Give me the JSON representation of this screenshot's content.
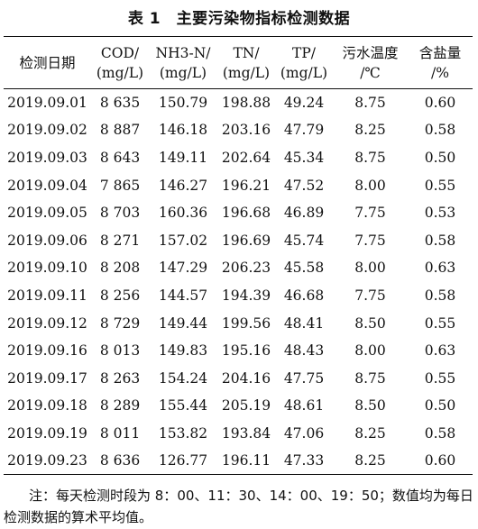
{
  "caption": "表 1　主要污染物指标检测数据",
  "columns": [
    {
      "line1": "检测日期",
      "line2": ""
    },
    {
      "line1": "COD/",
      "line2": "(mg/L)"
    },
    {
      "line1": "NH3-N/",
      "line2": "(mg/L)"
    },
    {
      "line1": "TN/",
      "line2": "(mg/L)"
    },
    {
      "line1": "TP/",
      "line2": "(mg/L)"
    },
    {
      "line1": "污水温度",
      "line2": "/℃"
    },
    {
      "line1": "含盐量",
      "line2": "/%"
    }
  ],
  "rows": [
    [
      "2019.09.01",
      "8 635",
      "150.79",
      "198.88",
      "49.24",
      "8.75",
      "0.60"
    ],
    [
      "2019.09.02",
      "8 887",
      "146.18",
      "203.16",
      "47.79",
      "8.25",
      "0.58"
    ],
    [
      "2019.09.03",
      "8 643",
      "149.11",
      "202.64",
      "45.34",
      "8.75",
      "0.50"
    ],
    [
      "2019.09.04",
      "7 865",
      "146.27",
      "196.21",
      "47.52",
      "8.00",
      "0.55"
    ],
    [
      "2019.09.05",
      "8 703",
      "160.36",
      "196.68",
      "46.89",
      "7.75",
      "0.53"
    ],
    [
      "2019.09.06",
      "8 271",
      "157.02",
      "196.69",
      "45.74",
      "7.75",
      "0.58"
    ],
    [
      "2019.09.10",
      "8 208",
      "147.29",
      "206.23",
      "45.58",
      "8.00",
      "0.63"
    ],
    [
      "2019.09.11",
      "8 256",
      "144.57",
      "194.39",
      "46.68",
      "7.75",
      "0.58"
    ],
    [
      "2019.09.12",
      "8 729",
      "149.44",
      "199.56",
      "48.41",
      "8.50",
      "0.55"
    ],
    [
      "2019.09.16",
      "8 013",
      "149.83",
      "195.16",
      "48.43",
      "8.00",
      "0.63"
    ],
    [
      "2019.09.17",
      "8 263",
      "154.24",
      "204.16",
      "47.75",
      "8.75",
      "0.55"
    ],
    [
      "2019.09.18",
      "8 289",
      "155.44",
      "205.19",
      "48.61",
      "8.50",
      "0.50"
    ],
    [
      "2019.09.19",
      "8 011",
      "153.82",
      "193.84",
      "47.06",
      "8.25",
      "0.58"
    ],
    [
      "2019.09.23",
      "8 636",
      "126.77",
      "196.11",
      "47.33",
      "8.25",
      "0.60"
    ]
  ],
  "note": "注：每天检测时段为 8：00、11：30、14：00、19：50；数值均为每日检测数据的算术平均值。"
}
